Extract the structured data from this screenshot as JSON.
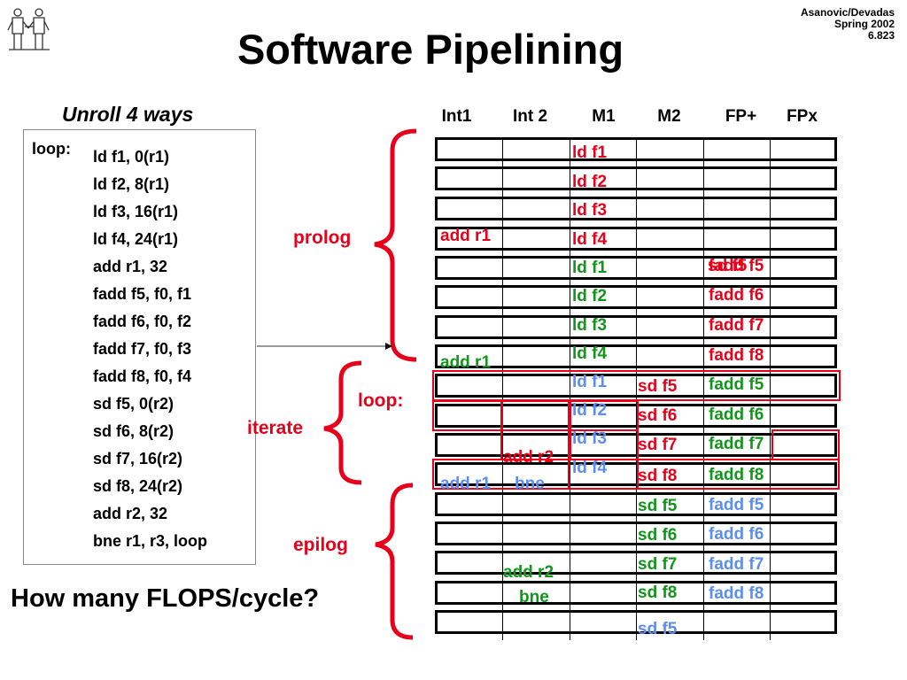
{
  "header": {
    "title": "Software Pipelining",
    "credit": [
      "Asanovic/Devadas",
      "Spring 2002",
      "6.823"
    ]
  },
  "code_panel": {
    "heading": "Unroll 4 ways",
    "loop_label": "loop:",
    "lines": [
      "ld f1, 0(r1)",
      "ld f2, 8(r1)",
      "ld f3, 16(r1)",
      "ld f4, 24(r1)",
      "add r1, 32",
      "fadd f5, f0, f1",
      "fadd f6, f0, f2",
      "fadd f7, f0, f3",
      "fadd f8, f0, f4",
      "sd f5, 0(r2)",
      "sd f6, 8(r2)",
      "sd f7, 16(r2)",
      "sd f8, 24(r2)",
      "add r2, 32",
      "bne r1, r3, loop"
    ]
  },
  "question": "How many FLOPS/cycle?",
  "table": {
    "columns": [
      "Int1",
      "Int 2",
      "M1",
      "M2",
      "FP+",
      "FPx"
    ],
    "labels": {
      "prolog": "prolog",
      "loop": "loop:",
      "iterate": "iterate",
      "epilog": "epilog"
    },
    "ops": {
      "p_add_r1": "add r1",
      "p_ld1": "ld f1",
      "p_ld2": "ld f2",
      "p_ld3": "ld f3",
      "p_ld4": "ld f4",
      "g_add_r1": "add r1",
      "g_ld1": "ld f1",
      "g_ld2": "ld f2",
      "g_ld3": "ld f3",
      "g_ld4": "ld f4",
      "g_fadd5": "fadd f5",
      "g_fadd6": "fadd f6",
      "g_fadd7": "fadd f7",
      "g_fadd8": "fadd f8",
      "b_ld1": "ld f1",
      "b_ld2": "ld f2",
      "b_ld3": "ld f3",
      "b_ld4": "ld f4",
      "b_add_r1": "add r1",
      "b_bne": "bne",
      "b_fadd5": "fadd f5",
      "b_fadd6": "fadd f6",
      "b_fadd7": "fadd f7",
      "b_fadd8": "fadd f8",
      "b_sd5": "sd f5",
      "r_add_r2": "add r2",
      "r_sd5": "sd f5",
      "r_sd6": "sd f6",
      "r_sd7": "sd f7",
      "r_sd8": "sd f8",
      "g_sd5": "sd f5",
      "g_sd6": "sd f6",
      "g_sd7": "sd f7",
      "g_sd8": "sd f8",
      "g_add_r2": "add r2",
      "g_bne": "bne"
    }
  },
  "colors": {
    "red": "#e8001a",
    "green": "#12951b",
    "blue": "#5b8ef0"
  }
}
